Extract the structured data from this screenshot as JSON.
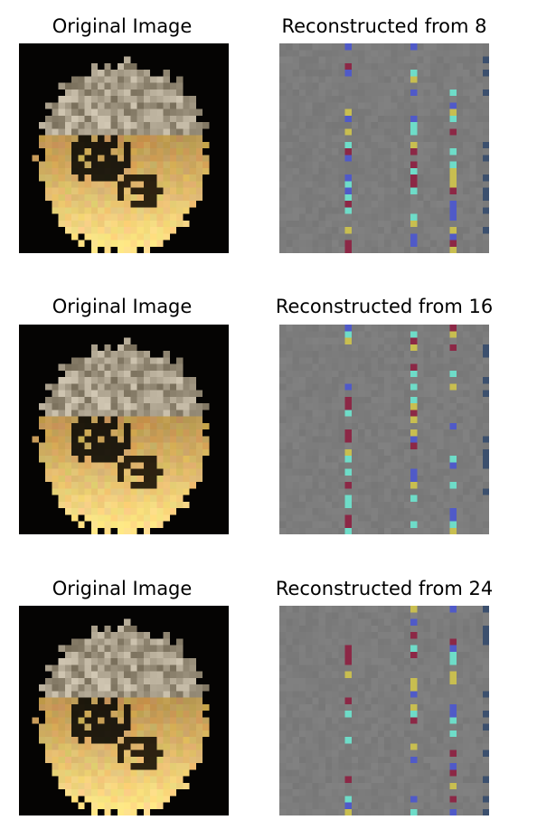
{
  "rows": [
    {
      "original_title": "Original Image",
      "recon_title": "Reconstructed from 8"
    },
    {
      "original_title": "Original Image",
      "recon_title": "Reconstructed from 16"
    },
    {
      "original_title": "Original Image",
      "recon_title": "Reconstructed from 24"
    }
  ],
  "colors": {
    "background": "#ffffff",
    "original_backdrop": "#050403",
    "recon_gray": "#7f7f7f"
  }
}
